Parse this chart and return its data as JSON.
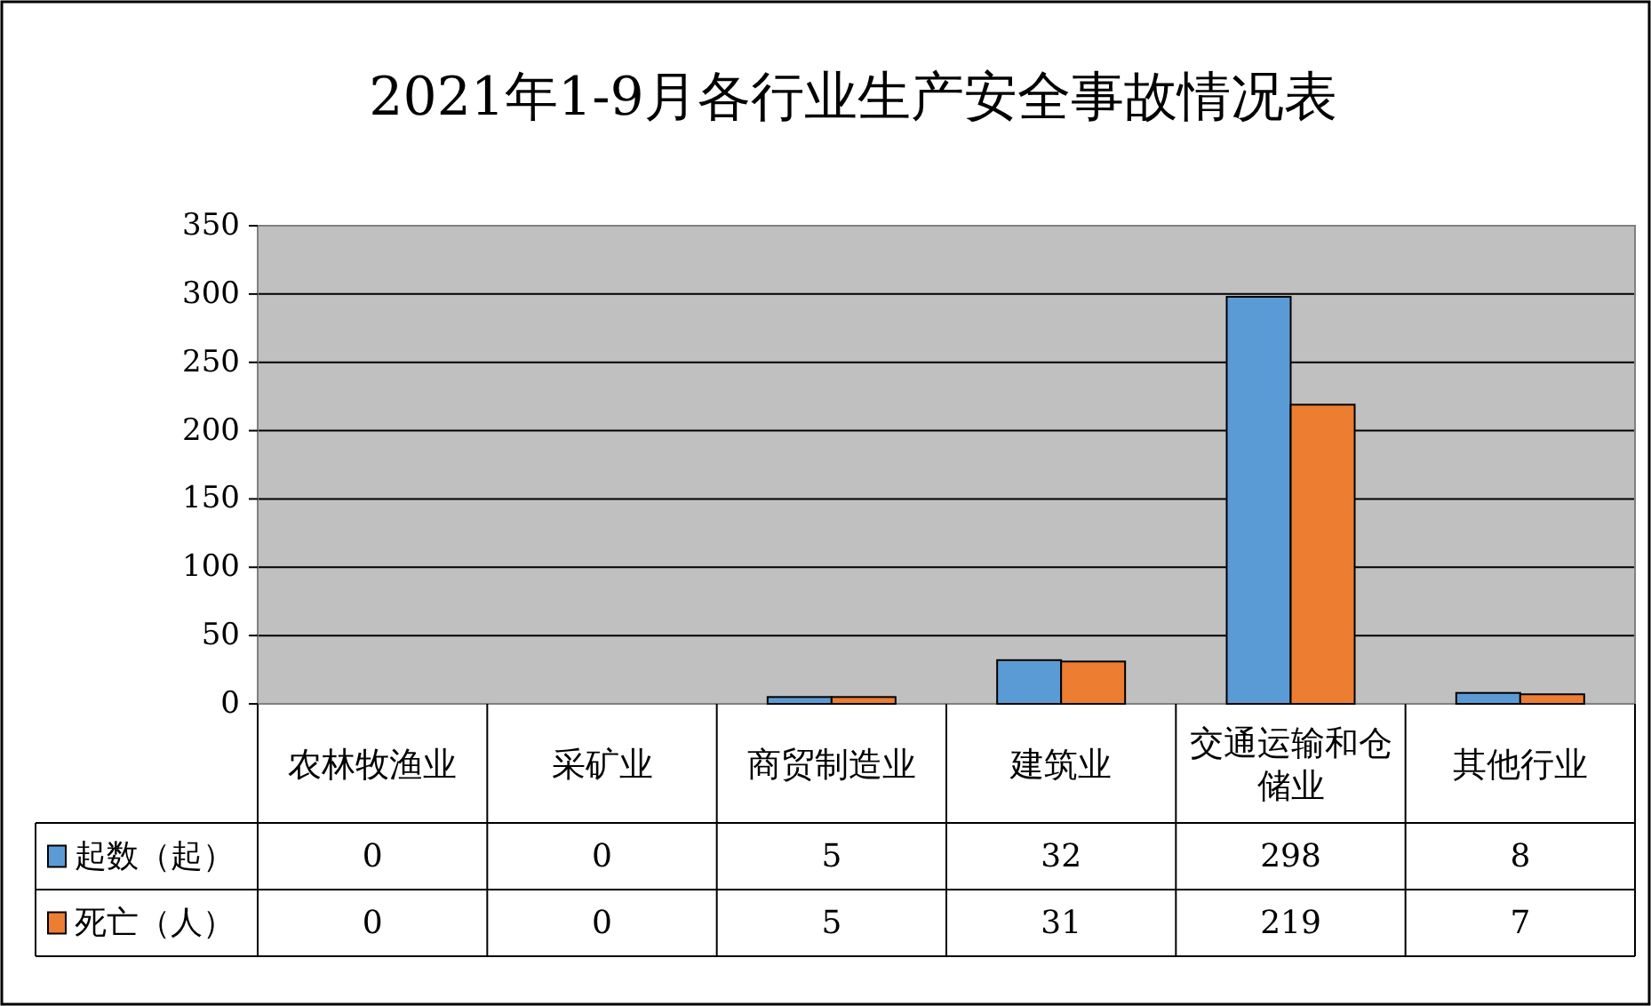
{
  "chart_data": {
    "type": "bar",
    "title": "2021年1-9月各行业生产安全事故情况表",
    "categories": [
      "农林牧渔业",
      "采矿业",
      "商贸制造业",
      "建筑业",
      "交通运输和仓储业",
      "其他行业"
    ],
    "series": [
      {
        "name": "起数（起）",
        "color": "#5b9bd5",
        "values": [
          0,
          0,
          5,
          32,
          298,
          8
        ]
      },
      {
        "name": "死亡（人）",
        "color": "#ed7d31",
        "values": [
          0,
          0,
          5,
          31,
          219,
          7
        ]
      }
    ],
    "ylim": [
      0,
      350
    ],
    "yticks": [
      0,
      50,
      100,
      150,
      200,
      250,
      300,
      350
    ],
    "grid": "y",
    "data_labels": true,
    "legend": "bottom"
  }
}
